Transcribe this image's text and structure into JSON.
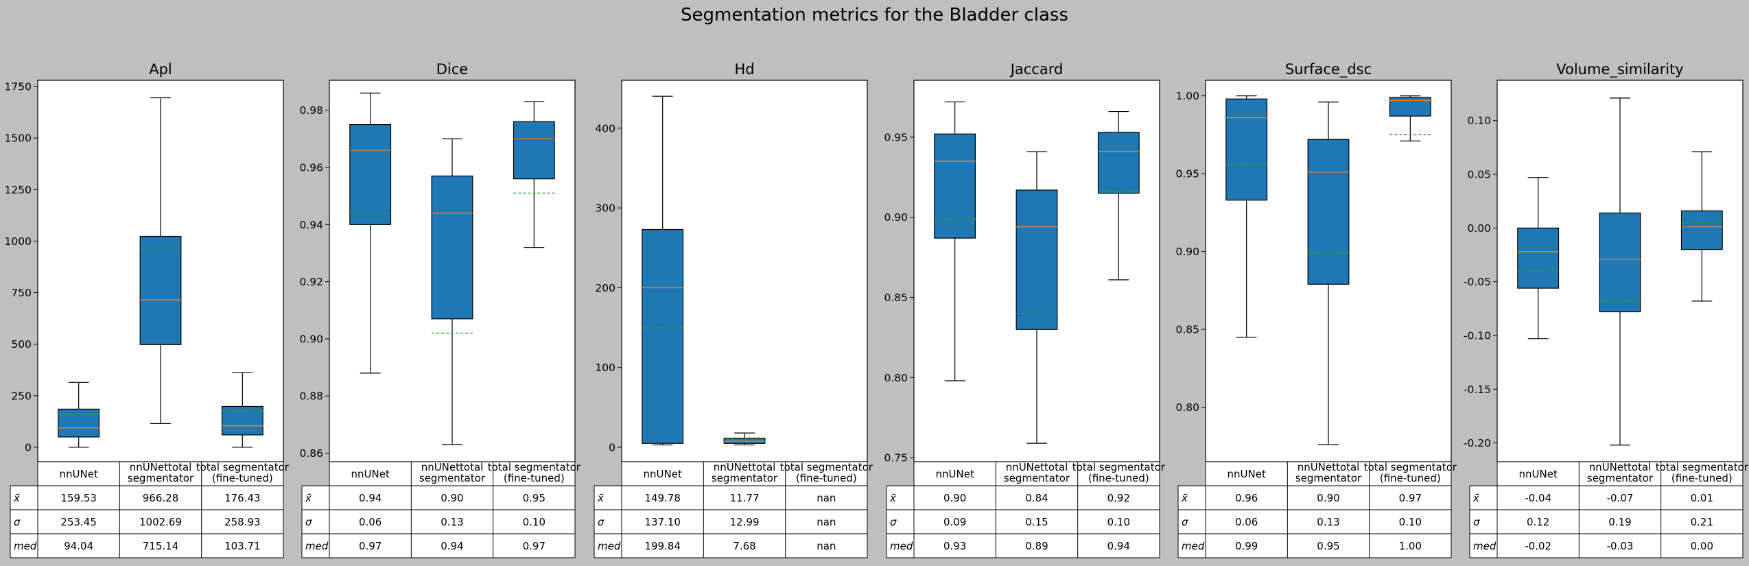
{
  "figure": {
    "title": "Segmentation metrics for the Bladder class"
  },
  "chart_data": [
    {
      "type": "box",
      "title": "Apl",
      "ylim": [
        -70,
        1780
      ],
      "yticks": [
        0,
        250,
        500,
        750,
        1000,
        1250,
        1500,
        1750
      ],
      "categories": [
        "nnUNet",
        "nnUNettotal\nsegmentator",
        "total segmentator\n(fine-tuned)"
      ],
      "boxes": [
        {
          "whislo": 0,
          "q1": 50,
          "med": 94,
          "q3": 185,
          "whishi": 315,
          "mean": 159.5
        },
        {
          "whislo": 115,
          "q1": 498,
          "med": 715,
          "q3": 1023,
          "whishi": 1695,
          "mean": 966.3
        },
        {
          "whislo": 0,
          "q1": 60,
          "med": 104,
          "q3": 198,
          "whishi": 362,
          "mean": 176.4
        }
      ],
      "table": {
        "row_labels": [
          "x̄",
          "σ",
          "med"
        ],
        "rows": [
          [
            "159.53",
            "966.28",
            "176.43"
          ],
          [
            "253.45",
            "1002.69",
            "258.93"
          ],
          [
            "94.04",
            "715.14",
            "103.71"
          ]
        ]
      }
    },
    {
      "type": "box",
      "title": "Dice",
      "ylim": [
        0.857,
        0.9905
      ],
      "yticks": [
        0.86,
        0.88,
        0.9,
        0.92,
        0.94,
        0.96,
        0.98
      ],
      "tick_decimals": 2,
      "categories": [
        "nnUNet",
        "nnUNettotal\nsegmentator",
        "total segmentator\n(fine-tuned)"
      ],
      "boxes": [
        {
          "whislo": 0.888,
          "q1": 0.94,
          "med": 0.966,
          "q3": 0.975,
          "whishi": 0.986,
          "mean": 0.944
        },
        {
          "whislo": 0.863,
          "q1": 0.907,
          "med": 0.944,
          "q3": 0.957,
          "whishi": 0.97,
          "mean": 0.902
        },
        {
          "whislo": 0.932,
          "q1": 0.956,
          "med": 0.97,
          "q3": 0.976,
          "whishi": 0.983,
          "mean": 0.951
        }
      ],
      "table": {
        "row_labels": [
          "x̄",
          "σ",
          "med"
        ],
        "rows": [
          [
            "0.94",
            "0.90",
            "0.95"
          ],
          [
            "0.06",
            "0.13",
            "0.10"
          ],
          [
            "0.97",
            "0.94",
            "0.97"
          ]
        ]
      }
    },
    {
      "type": "box",
      "title": "Hd",
      "ylim": [
        -18,
        460
      ],
      "yticks": [
        0,
        100,
        200,
        300,
        400
      ],
      "categories": [
        "nnUNet",
        "nnUNettotal\nsegmentator",
        "total segmentator\n(fine-tuned)"
      ],
      "boxes": [
        {
          "whislo": 3,
          "q1": 5,
          "med": 200,
          "q3": 273,
          "whishi": 440,
          "mean": 149.8
        },
        {
          "whislo": 3,
          "q1": 5,
          "med": 7.7,
          "q3": 11,
          "whishi": 18,
          "mean": 11.8
        },
        null
      ],
      "table": {
        "row_labels": [
          "x̄",
          "σ",
          "med"
        ],
        "rows": [
          [
            "149.78",
            "11.77",
            "nan"
          ],
          [
            "137.10",
            "12.99",
            "nan"
          ],
          [
            "199.84",
            "7.68",
            "nan"
          ]
        ]
      }
    },
    {
      "type": "box",
      "title": "Jaccard",
      "ylim": [
        0.7475,
        0.9855
      ],
      "yticks": [
        0.75,
        0.8,
        0.85,
        0.9,
        0.95
      ],
      "tick_decimals": 2,
      "categories": [
        "nnUNet",
        "nnUNettotal\nsegmentator",
        "total segmentator\n(fine-tuned)"
      ],
      "boxes": [
        {
          "whislo": 0.798,
          "q1": 0.887,
          "med": 0.935,
          "q3": 0.952,
          "whishi": 0.972,
          "mean": 0.899
        },
        {
          "whislo": 0.759,
          "q1": 0.83,
          "med": 0.894,
          "q3": 0.917,
          "whishi": 0.941,
          "mean": 0.84
        },
        {
          "whislo": 0.861,
          "q1": 0.915,
          "med": 0.941,
          "q3": 0.953,
          "whishi": 0.966,
          "mean": 0.916
        }
      ],
      "table": {
        "row_labels": [
          "x̄",
          "σ",
          "med"
        ],
        "rows": [
          [
            "0.90",
            "0.84",
            "0.92"
          ],
          [
            "0.09",
            "0.15",
            "0.10"
          ],
          [
            "0.93",
            "0.89",
            "0.94"
          ]
        ]
      }
    },
    {
      "type": "box",
      "title": "Surface_dsc",
      "ylim": [
        0.765,
        1.01
      ],
      "yticks": [
        0.8,
        0.85,
        0.9,
        0.95,
        1.0
      ],
      "tick_decimals": 2,
      "categories": [
        "nnUNet",
        "nnUNettotal\nsegmentator",
        "total segmentator\n(fine-tuned)"
      ],
      "boxes": [
        {
          "whislo": 0.845,
          "q1": 0.933,
          "med": 0.986,
          "q3": 0.998,
          "whishi": 1.0,
          "mean": 0.956
        },
        {
          "whislo": 0.776,
          "q1": 0.879,
          "med": 0.951,
          "q3": 0.972,
          "whishi": 0.996,
          "mean": 0.899
        },
        {
          "whislo": 0.971,
          "q1": 0.987,
          "med": 0.997,
          "q3": 0.999,
          "whishi": 1.0,
          "mean": 0.975
        }
      ],
      "table": {
        "row_labels": [
          "x̄",
          "σ",
          "med"
        ],
        "rows": [
          [
            "0.96",
            "0.90",
            "0.97"
          ],
          [
            "0.06",
            "0.13",
            "0.10"
          ],
          [
            "0.99",
            "0.95",
            "1.00"
          ]
        ]
      }
    },
    {
      "type": "box",
      "title": "Volume_similarity",
      "ylim": [
        -0.2175,
        0.1375
      ],
      "yticks": [
        -0.2,
        -0.15,
        -0.1,
        -0.05,
        0.0,
        0.05,
        0.1
      ],
      "tick_decimals": 2,
      "categories": [
        "nnUNet",
        "nnUNettotal\nsegmentator",
        "total segmentator\n(fine-tuned)"
      ],
      "boxes": [
        {
          "whislo": -0.103,
          "q1": -0.056,
          "med": -0.022,
          "q3": 0.0,
          "whishi": 0.047,
          "mean": -0.04
        },
        {
          "whislo": -0.202,
          "q1": -0.078,
          "med": -0.029,
          "q3": 0.014,
          "whishi": 0.121,
          "mean": -0.068
        },
        {
          "whislo": -0.068,
          "q1": -0.02,
          "med": 0.001,
          "q3": 0.016,
          "whishi": 0.071,
          "mean": 0.005
        }
      ],
      "table": {
        "row_labels": [
          "x̄",
          "σ",
          "med"
        ],
        "rows": [
          [
            "-0.04",
            "-0.07",
            "0.01"
          ],
          [
            "0.12",
            "0.19",
            "0.21"
          ],
          [
            "-0.02",
            "-0.03",
            "0.00"
          ]
        ]
      }
    }
  ],
  "colors": {
    "background": "#bfbfbf",
    "box_fill": "#1f77b4",
    "median_line": "#ff7f0e",
    "mean_line": "#2ca02c"
  }
}
